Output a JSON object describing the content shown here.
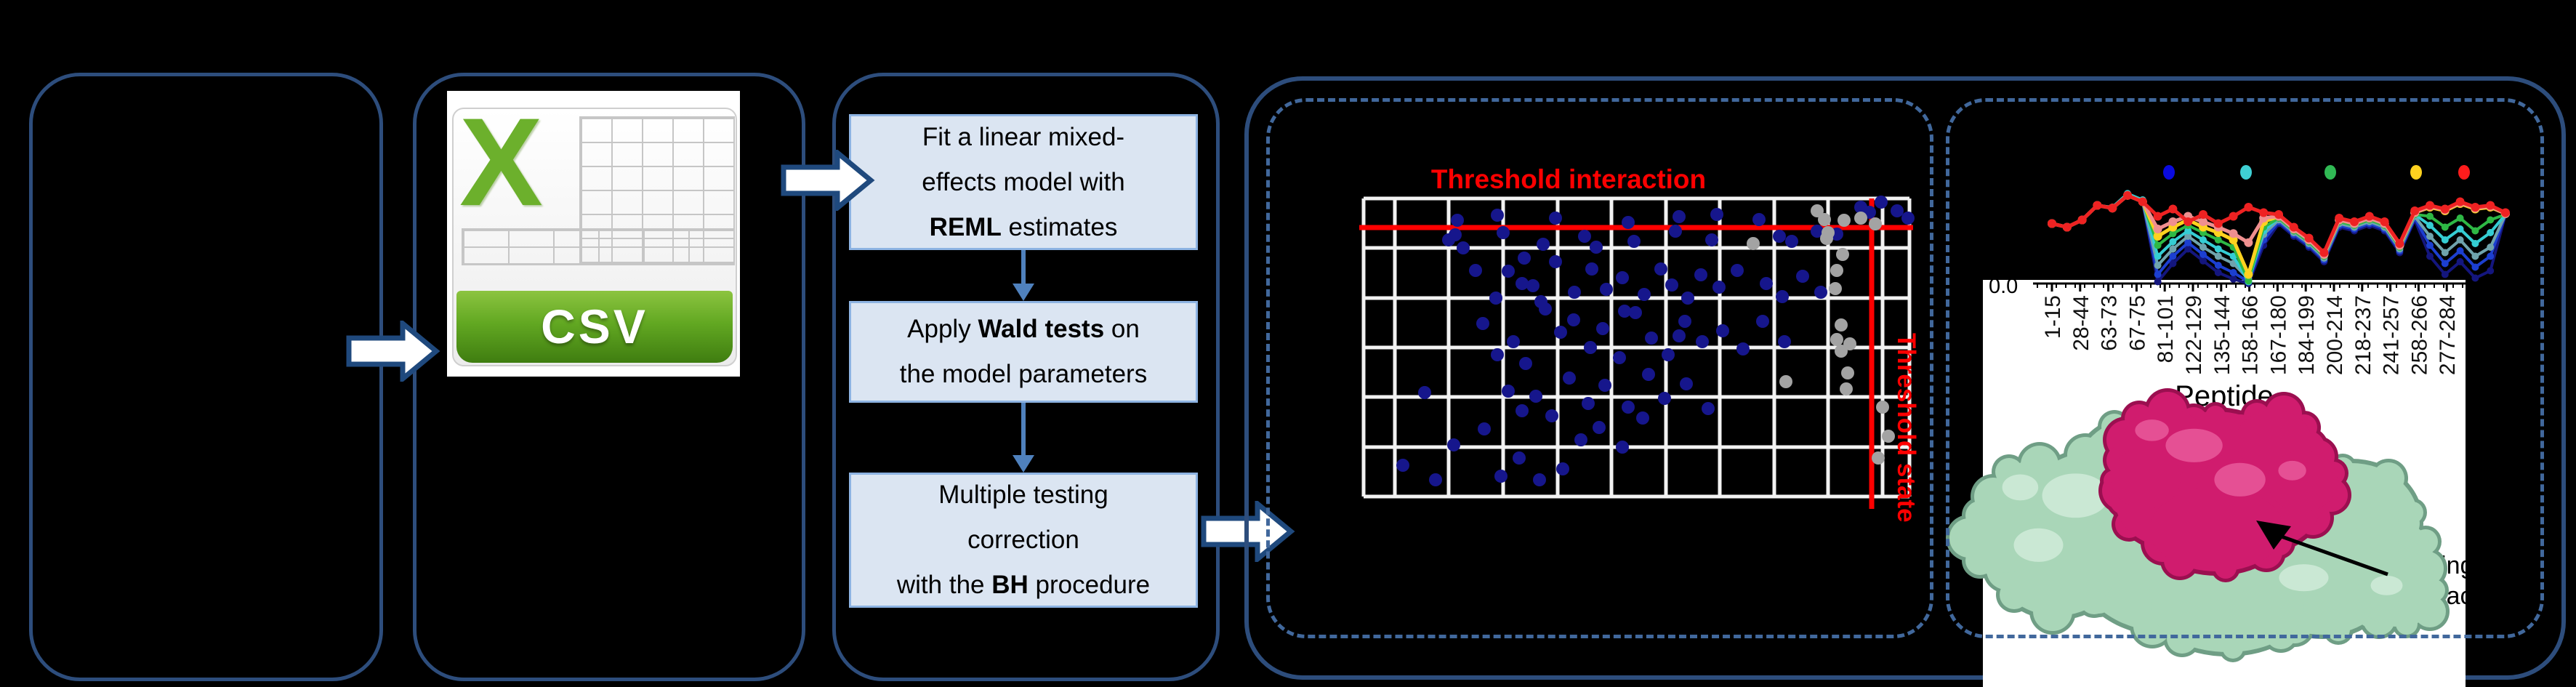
{
  "colors": {
    "background": "#000000",
    "box_border": "#2d4d7c",
    "dashed_border": "#41689c",
    "step_fill": "#dbe5f2",
    "step_border": "#8db3e2",
    "flow_arrow_fill": "#ffffff",
    "flow_arrow_stroke": "#1f497d",
    "connector": "#4f81bd",
    "threshold_red": "#ff0000",
    "grid_white": "#f2f2f2",
    "significant_blue": "#16168c",
    "nonsignificant_gray": "#a3a3a3",
    "mint_protein": "#a9d6b8",
    "magenta_peptide": "#d01c6e"
  },
  "csv": {
    "x_glyph": "X",
    "banner_label": "CSV"
  },
  "steps": [
    {
      "lines": [
        [
          [
            "Fit a linear mixed-",
            0
          ]
        ],
        [
          [
            "effects model with",
            0
          ]
        ],
        [
          [
            "REML",
            1
          ],
          [
            " estimates",
            0
          ]
        ]
      ]
    },
    {
      "lines": [
        [
          [
            "Apply ",
            0
          ],
          [
            "Wald tests",
            1
          ],
          [
            " on",
            0
          ]
        ],
        [
          [
            "the model parameters",
            0
          ]
        ]
      ]
    },
    {
      "lines": [
        [
          [
            "Multiple testing",
            0
          ]
        ],
        [
          [
            "correction",
            0
          ]
        ],
        [
          [
            "with the ",
            0
          ],
          [
            "BH",
            1
          ],
          [
            " procedure",
            0
          ]
        ]
      ]
    }
  ],
  "scatter_labels": {
    "interaction": "Threshold interaction",
    "state": "Threshold state"
  },
  "peptide_panel": {
    "y_tick": "0.0",
    "xlabel": "Peptide",
    "annotation_line1": "Binding",
    "annotation_line2": "interface"
  },
  "chart_data": [
    {
      "type": "scatter",
      "title": "Threshold interaction",
      "right_label": "Threshold state",
      "axis_labels_visible": false,
      "grid": true,
      "geom": {
        "x0": 1876,
        "x1": 2627,
        "y0": 273,
        "y1": 683,
        "v_gridlines": [
          1876,
          1919,
          1993,
          2068,
          2143,
          2217,
          2292,
          2366,
          2441,
          2515,
          2590,
          2627
        ],
        "h_gridlines": [
          273,
          341,
          410,
          478,
          546,
          615,
          683
        ],
        "threshold_interaction_y": 313,
        "threshold_state_x": 2575,
        "point_radius": 9
      },
      "series": [
        {
          "name": "blue-points",
          "color": "#16168c",
          "points": [
            [
              2005,
              303
            ],
            [
              2060,
              296
            ],
            [
              2140,
              300
            ],
            [
              2240,
              306
            ],
            [
              2310,
              298
            ],
            [
              2362,
              295
            ],
            [
              2420,
              302
            ],
            [
              2560,
              285
            ],
            [
              2572,
              292
            ],
            [
              2588,
              278
            ],
            [
              2610,
              290
            ],
            [
              2625,
              300
            ],
            [
              1993,
              330
            ],
            [
              2002,
              323
            ],
            [
              2013,
              341
            ],
            [
              2068,
              320
            ],
            [
              2123,
              336
            ],
            [
              2180,
              325
            ],
            [
              2196,
              340
            ],
            [
              2248,
              332
            ],
            [
              2305,
              318
            ],
            [
              2355,
              330
            ],
            [
              2448,
              325
            ],
            [
              2465,
              332
            ],
            [
              2500,
              318
            ],
            [
              2527,
              322
            ],
            [
              2030,
              372
            ],
            [
              2058,
              410
            ],
            [
              2075,
              373
            ],
            [
              2094,
              390
            ],
            [
              2097,
              355
            ],
            [
              2109,
              393
            ],
            [
              2120,
              415
            ],
            [
              2140,
              360
            ],
            [
              2166,
              402
            ],
            [
              2190,
              370
            ],
            [
              2210,
              398
            ],
            [
              2232,
              382
            ],
            [
              2262,
              405
            ],
            [
              2285,
              370
            ],
            [
              2300,
              392
            ],
            [
              2322,
              410
            ],
            [
              2340,
              378
            ],
            [
              2365,
              395
            ],
            [
              2390,
              372
            ],
            [
              2430,
              390
            ],
            [
              2452,
              408
            ],
            [
              2480,
              380
            ],
            [
              2505,
              402
            ],
            [
              2040,
              445
            ],
            [
              2060,
              488
            ],
            [
              2082,
              470
            ],
            [
              2126,
              425
            ],
            [
              2147,
              457
            ],
            [
              2165,
              440
            ],
            [
              2188,
              478
            ],
            [
              2205,
              452
            ],
            [
              2228,
              492
            ],
            [
              2235,
              428
            ],
            [
              2250,
              430
            ],
            [
              2272,
              465
            ],
            [
              2295,
              488
            ],
            [
              2310,
              462
            ],
            [
              2318,
              442
            ],
            [
              2342,
              470
            ],
            [
              2370,
              455
            ],
            [
              2398,
              480
            ],
            [
              2425,
              442
            ],
            [
              2455,
              470
            ],
            [
              1960,
              540
            ],
            [
              2075,
              538
            ],
            [
              2094,
              565
            ],
            [
              2099,
              500
            ],
            [
              2113,
              545
            ],
            [
              2135,
              572
            ],
            [
              2159,
              520
            ],
            [
              2185,
              555
            ],
            [
              2208,
              530
            ],
            [
              2240,
              560
            ],
            [
              2260,
              575
            ],
            [
              2268,
              515
            ],
            [
              2290,
              548
            ],
            [
              2320,
              528
            ],
            [
              2350,
              562
            ],
            [
              1930,
              640
            ],
            [
              1975,
              660
            ],
            [
              2000,
              612
            ],
            [
              2042,
              590
            ],
            [
              2065,
              655
            ],
            [
              2090,
              630
            ],
            [
              2118,
              660
            ],
            [
              2150,
              645
            ],
            [
              2175,
              605
            ],
            [
              2200,
              588
            ],
            [
              2232,
              615
            ]
          ]
        },
        {
          "name": "gray-points",
          "color": "#a3a3a3",
          "points": [
            [
              2412,
              335
            ],
            [
              2457,
              525
            ],
            [
              2500,
              290
            ],
            [
              2510,
              302
            ],
            [
              2513,
              328
            ],
            [
              2515,
              320
            ],
            [
              2525,
              397
            ],
            [
              2527,
              372
            ],
            [
              2527,
              467
            ],
            [
              2533,
              447
            ],
            [
              2533,
              483
            ],
            [
              2535,
              350
            ],
            [
              2537,
              303
            ],
            [
              2540,
              535
            ],
            [
              2542,
              513
            ],
            [
              2545,
              473
            ],
            [
              2560,
              300
            ],
            [
              2580,
              308
            ],
            [
              2590,
              560
            ],
            [
              2598,
              600
            ],
            [
              2584,
              630
            ]
          ]
        }
      ]
    },
    {
      "type": "line",
      "xlabel": "Peptide",
      "x_tick_labels": [
        "1-15",
        "28-44",
        "63-73",
        "67-75",
        "81-101",
        "122-129",
        "135-144",
        "158-166",
        "167-180",
        "184-199",
        "200-214",
        "218-237",
        "241-257",
        "258-266",
        "277-284"
      ],
      "y_tick_visible": "0.0",
      "legend_dot_colors": [
        "#0a0adf",
        "#3fd0d4",
        "#30b954",
        "#ffd21f",
        "#ff1c1c"
      ],
      "geom": {
        "x_start": 2823,
        "x_step": 20.8,
        "n_points": 31,
        "axis_y": 390,
        "y_scale": 125,
        "axis_x0": 2797,
        "axis_x1": 3392,
        "label_x_start": 2823,
        "label_x_step": 38.8,
        "legend_y": 237,
        "legend_xs": [
          2984,
          3090,
          3206,
          3324,
          3390
        ],
        "legend_r": 8
      },
      "series": [
        {
          "name": "line-1",
          "color": "#14167e",
          "values": [
            0.66,
            0.62,
            0.7,
            0.86,
            0.83,
            0.97,
            0.9,
            0.02,
            0.22,
            0.38,
            0.25,
            0.12,
            0.05,
            0.0,
            0.42,
            0.66,
            0.52,
            0.4,
            0.24,
            0.62,
            0.58,
            0.64,
            0.58,
            0.34,
            0.7,
            0.3,
            0.1,
            0.24,
            0.06,
            0.14,
            0.76
          ]
        },
        {
          "name": "line-2",
          "color": "#1c3fd0",
          "values": [
            0.66,
            0.62,
            0.7,
            0.86,
            0.83,
            0.97,
            0.9,
            0.1,
            0.3,
            0.45,
            0.32,
            0.2,
            0.12,
            0.02,
            0.48,
            0.68,
            0.54,
            0.42,
            0.26,
            0.64,
            0.6,
            0.66,
            0.6,
            0.36,
            0.72,
            0.42,
            0.22,
            0.36,
            0.18,
            0.3,
            0.76
          ]
        },
        {
          "name": "line-3",
          "color": "#6fa3ad",
          "values": [
            0.66,
            0.62,
            0.7,
            0.86,
            0.83,
            0.97,
            0.9,
            0.2,
            0.38,
            0.52,
            0.4,
            0.3,
            0.22,
            0.05,
            0.54,
            0.7,
            0.56,
            0.44,
            0.28,
            0.66,
            0.62,
            0.68,
            0.62,
            0.38,
            0.74,
            0.52,
            0.34,
            0.48,
            0.3,
            0.4,
            0.76
          ]
        },
        {
          "name": "line-4",
          "color": "#35cdd3",
          "values": [
            0.66,
            0.62,
            0.7,
            0.86,
            0.84,
            0.99,
            0.92,
            0.3,
            0.46,
            0.58,
            0.48,
            0.38,
            0.3,
            0.02,
            0.58,
            0.72,
            0.58,
            0.46,
            0.3,
            0.68,
            0.64,
            0.7,
            0.64,
            0.4,
            0.76,
            0.64,
            0.48,
            0.6,
            0.44,
            0.56,
            0.76
          ]
        },
        {
          "name": "line-5",
          "color": "#2eb845",
          "values": [
            0.66,
            0.62,
            0.7,
            0.86,
            0.83,
            0.97,
            0.9,
            0.42,
            0.55,
            0.64,
            0.56,
            0.48,
            0.4,
            0.03,
            0.62,
            0.72,
            0.58,
            0.46,
            0.3,
            0.68,
            0.64,
            0.7,
            0.64,
            0.4,
            0.76,
            0.74,
            0.62,
            0.72,
            0.58,
            0.7,
            0.76
          ]
        },
        {
          "name": "line-6",
          "color": "#ffd21f",
          "values": [
            0.66,
            0.62,
            0.7,
            0.86,
            0.83,
            0.97,
            0.9,
            0.52,
            0.62,
            0.7,
            0.62,
            0.56,
            0.48,
            0.1,
            0.68,
            0.74,
            0.6,
            0.48,
            0.32,
            0.7,
            0.66,
            0.72,
            0.66,
            0.42,
            0.78,
            0.84,
            0.8,
            0.88,
            0.82,
            0.84,
            0.77
          ]
        },
        {
          "name": "line-7",
          "color": "#ef8f8f",
          "values": [
            0.66,
            0.62,
            0.7,
            0.86,
            0.83,
            0.97,
            0.9,
            0.6,
            0.68,
            0.74,
            0.68,
            0.62,
            0.55,
            0.45,
            0.72,
            0.74,
            0.6,
            0.48,
            0.32,
            0.7,
            0.66,
            0.72,
            0.66,
            0.42,
            0.78,
            0.85,
            0.81,
            0.89,
            0.83,
            0.85,
            0.77
          ]
        },
        {
          "name": "line-8",
          "color": "#ee2222",
          "values": [
            0.66,
            0.62,
            0.7,
            0.86,
            0.83,
            0.97,
            0.9,
            0.74,
            0.82,
            0.68,
            0.76,
            0.66,
            0.74,
            0.84,
            0.78,
            0.76,
            0.62,
            0.5,
            0.34,
            0.72,
            0.68,
            0.74,
            0.68,
            0.44,
            0.8,
            0.86,
            0.82,
            0.9,
            0.84,
            0.86,
            0.78
          ]
        }
      ]
    }
  ]
}
